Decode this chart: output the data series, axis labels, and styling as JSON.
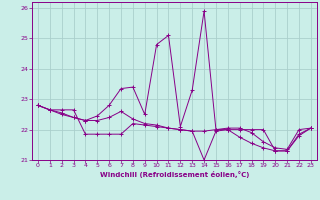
{
  "xlabel": "Windchill (Refroidissement éolien,°C)",
  "background_color": "#caeee8",
  "grid_color": "#aacfcc",
  "line_color": "#880088",
  "xlim": [
    -0.5,
    23.5
  ],
  "ylim": [
    21.0,
    26.2
  ],
  "yticks": [
    21,
    22,
    23,
    24,
    25,
    26
  ],
  "xticks": [
    0,
    1,
    2,
    3,
    4,
    5,
    6,
    7,
    8,
    9,
    10,
    11,
    12,
    13,
    14,
    15,
    16,
    17,
    18,
    19,
    20,
    21,
    22,
    23
  ],
  "hours": [
    0,
    1,
    2,
    3,
    4,
    5,
    6,
    7,
    8,
    9,
    10,
    11,
    12,
    13,
    14,
    15,
    16,
    17,
    18,
    19,
    20,
    21,
    22,
    23
  ],
  "line1": [
    22.8,
    22.65,
    22.65,
    22.65,
    21.85,
    21.85,
    21.85,
    21.85,
    22.2,
    22.15,
    22.1,
    22.05,
    22.0,
    21.95,
    21.0,
    21.95,
    22.0,
    22.0,
    22.0,
    22.0,
    21.3,
    21.3,
    21.85,
    22.05
  ],
  "line2": [
    22.8,
    22.65,
    22.55,
    22.4,
    22.3,
    22.45,
    22.8,
    23.35,
    23.4,
    22.5,
    24.8,
    25.1,
    22.1,
    23.3,
    25.9,
    22.0,
    22.05,
    22.05,
    21.9,
    21.6,
    21.4,
    21.35,
    22.0,
    22.05
  ],
  "line3": [
    22.8,
    22.65,
    22.5,
    22.4,
    22.3,
    22.3,
    22.4,
    22.6,
    22.35,
    22.2,
    22.15,
    22.05,
    22.0,
    21.95,
    21.95,
    22.0,
    22.0,
    21.75,
    21.55,
    21.4,
    21.3,
    21.3,
    21.8,
    22.05
  ]
}
